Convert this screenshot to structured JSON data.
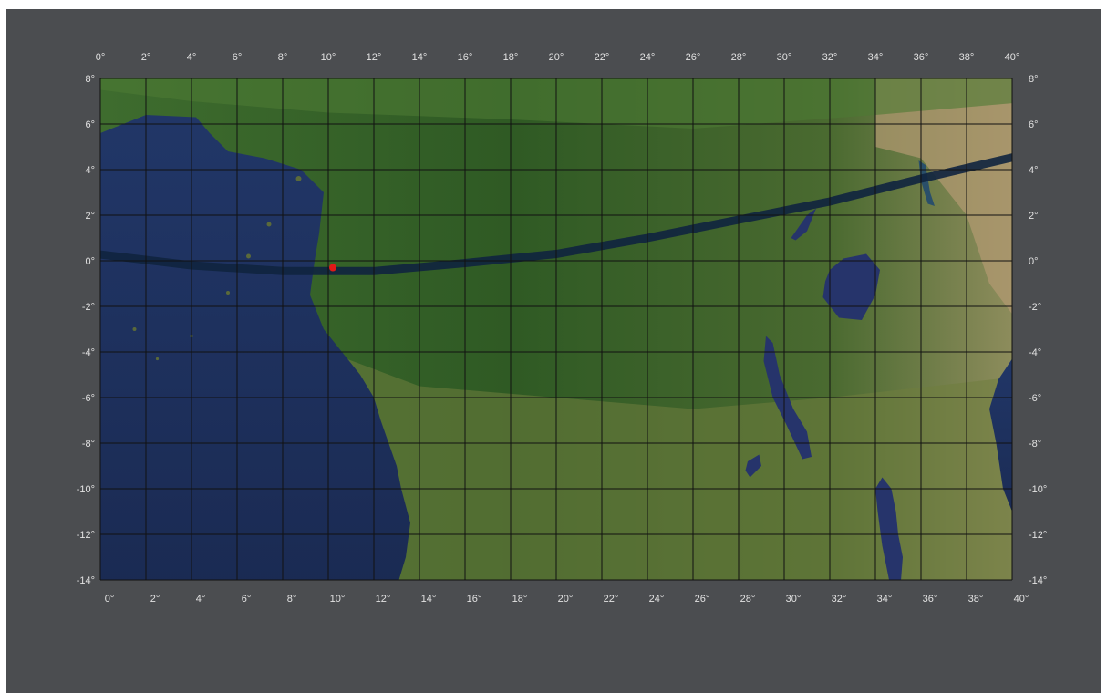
{
  "map": {
    "lon_range": [
      0,
      40
    ],
    "lat_range": [
      -14,
      8
    ],
    "lon_step": 2,
    "lat_step": 2,
    "degree_symbol": "°",
    "top_labels": [
      "0°",
      "2°",
      "4°",
      "6°",
      "8°",
      "10°",
      "12°",
      "14°",
      "16°",
      "18°",
      "20°",
      "22°",
      "24°",
      "26°",
      "28°",
      "30°",
      "32°",
      "34°",
      "36°",
      "38°",
      "40°"
    ],
    "bottom_labels": [
      "0°",
      "2°",
      "4°",
      "6°",
      "8°",
      "10°",
      "12°",
      "14°",
      "16°",
      "18°",
      "20°",
      "22°",
      "24°",
      "26°",
      "28°",
      "30°",
      "32°",
      "34°",
      "36°",
      "38°",
      "40°"
    ],
    "lat_labels": [
      "8°",
      "6°",
      "4°",
      "2°",
      "0°",
      "-2°",
      "-4°",
      "-6°",
      "-8°",
      "-10°",
      "-12°",
      "-14°"
    ],
    "colors": {
      "background": "#4b4d50",
      "ocean": "#1d2f5a",
      "land_forest": "#35602a",
      "land_savanna": "#6b7a3c",
      "land_arid": "#a08a64",
      "lake": "#25336a",
      "grid": "#111111",
      "track": "#10243f",
      "marker": "#e01818",
      "label": "#e2e2e2"
    },
    "track_points": [
      [
        -0.2,
        0.3
      ],
      [
        4,
        -0.2
      ],
      [
        8,
        -0.45
      ],
      [
        12,
        -0.45
      ],
      [
        16,
        -0.1
      ],
      [
        20,
        0.3
      ],
      [
        24,
        1.0
      ],
      [
        28,
        1.8
      ],
      [
        32,
        2.6
      ],
      [
        36,
        3.6
      ],
      [
        40.3,
        4.6
      ]
    ],
    "marker": {
      "lon": 10.2,
      "lat": -0.3,
      "label": ""
    }
  }
}
